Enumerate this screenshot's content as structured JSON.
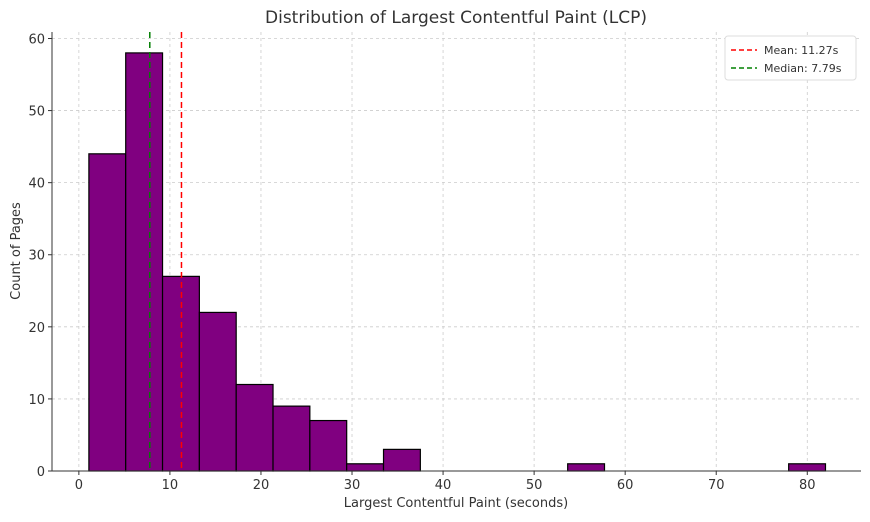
{
  "chart_data": {
    "type": "bar",
    "title": "Distribution of Largest Contentful Paint (LCP)",
    "xlabel": "Largest Contentful Paint (seconds)",
    "ylabel": "Count of Pages",
    "bin_start": 1.1,
    "bin_width": 4.045,
    "values": [
      44,
      58,
      27,
      22,
      12,
      9,
      7,
      1,
      3,
      0,
      0,
      0,
      0,
      1,
      0,
      0,
      0,
      0,
      0,
      1
    ],
    "xlim": [
      -2.95,
      85.9
    ],
    "ylim": [
      0,
      60.9
    ],
    "xticks": [
      0,
      10,
      20,
      30,
      40,
      50,
      60,
      70,
      80
    ],
    "yticks": [
      0,
      10,
      20,
      30,
      40,
      50,
      60
    ],
    "bar_color": "#800080",
    "edge_color": "#000000",
    "grid": true,
    "lines": [
      {
        "name": "Mean: 11.27s",
        "x": 11.27,
        "color": "#ff0000"
      },
      {
        "name": "Median: 7.79s",
        "x": 7.79,
        "color": "#008000"
      }
    ],
    "legend": "top-right"
  }
}
